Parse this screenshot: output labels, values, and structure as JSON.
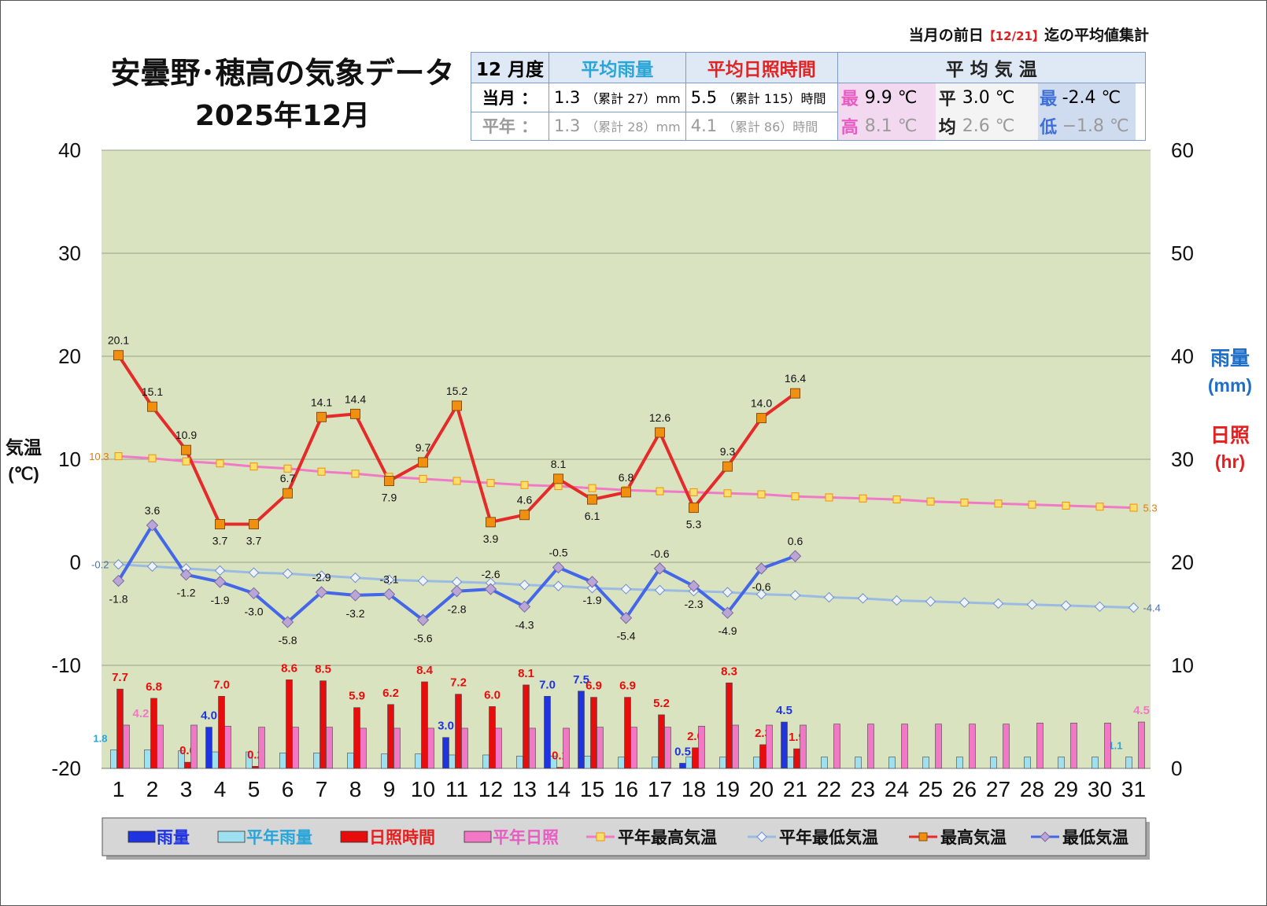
{
  "note": {
    "prefix": "当月の前日",
    "range": "【12/21】",
    "suffix": "迄の平均値集計"
  },
  "title": "安曇野･穂高の気象データ",
  "subtitle": "2025年12月",
  "summary": {
    "corner": "12 月度",
    "rain_header": "平均雨量",
    "sun_header": "平均日照時間",
    "temp_header": "平 均 気 温",
    "row_current": "当月 ：",
    "row_normal": "平年 ：",
    "rain_current": "1.3",
    "rain_current_cum": "（累計 27）mm",
    "rain_normal": "1.3",
    "rain_normal_cum": "（累計 28）mm",
    "sun_current": "5.5",
    "sun_current_cum": "（累計 115）時間",
    "sun_normal": "4.1",
    "sun_normal_cum": "（累計 86）時間",
    "max_label_1": "最",
    "max_label_2": "高",
    "avg_label_1": "平",
    "avg_label_2": "均",
    "min_label_1": "最",
    "min_label_2": "低",
    "max_current": "9.9 ℃",
    "max_normal": "8.1 ℃",
    "avg_current": "3.0 ℃",
    "avg_normal": "2.6 ℃",
    "min_current": "-2.4 ℃",
    "min_normal": "−1.8 ℃"
  },
  "colors": {
    "plot_bg": "#d9e3bf",
    "rain": "#1f33e0",
    "normal_rain": "#9fe0f0",
    "sunshine": "#e80d0d",
    "normal_sunshine": "#f277c4",
    "normal_max_line": "#f07ac6",
    "normal_min_line": "#9bbbe3",
    "max_line": "#e52a2a",
    "min_line": "#4466e8",
    "marker_orange": "#f0900e",
    "marker_lilac": "#b9a6d6"
  },
  "chart_data": {
    "type": "combo-bar-line",
    "ylabel_left": "気温",
    "ylabel_left_unit": "(℃)",
    "ylabel_right_rain": "雨量",
    "ylabel_right_rain_unit": "(mm)",
    "ylabel_right_sun": "日照",
    "ylabel_right_sun_unit": "(hr)",
    "ylim_left": [
      -20,
      40
    ],
    "ylim_right": [
      0,
      60
    ],
    "left_ticks": [
      "-20",
      "-10",
      "0",
      "10",
      "20",
      "30",
      "40"
    ],
    "right_ticks": [
      "0",
      "10",
      "20",
      "30",
      "40",
      "50",
      "60"
    ],
    "grid": true,
    "legend_position": "bottom",
    "categories": [
      "1",
      "2",
      "3",
      "4",
      "5",
      "6",
      "7",
      "8",
      "9",
      "10",
      "11",
      "12",
      "13",
      "14",
      "15",
      "16",
      "17",
      "18",
      "19",
      "20",
      "21",
      "22",
      "23",
      "24",
      "25",
      "26",
      "27",
      "28",
      "29",
      "30",
      "31"
    ],
    "series": [
      {
        "name": "雨量",
        "kind": "bar",
        "axis": "right",
        "values": [
          0,
          0,
          0,
          4.0,
          0,
          0,
          0,
          0,
          0,
          0,
          3.0,
          0,
          0,
          7.0,
          7.5,
          0,
          0,
          0.5,
          0,
          0,
          4.5,
          null,
          null,
          null,
          null,
          null,
          null,
          null,
          null,
          null,
          null
        ],
        "labels": [
          "",
          "",
          "",
          "4.0",
          "",
          "",
          "",
          "",
          "",
          "",
          "3.0",
          "",
          "",
          "7.0",
          "7.5",
          "",
          "",
          "0.5",
          "",
          "",
          "4.5",
          "",
          "",
          "",
          "",
          "",
          "",
          "",
          "",
          "",
          ""
        ]
      },
      {
        "name": "平年雨量",
        "kind": "bar",
        "axis": "right",
        "values": [
          1.8,
          1.8,
          1.7,
          1.6,
          1.6,
          1.5,
          1.5,
          1.5,
          1.4,
          1.4,
          1.3,
          1.3,
          1.2,
          1.2,
          1.2,
          1.1,
          1.1,
          1.1,
          1.1,
          1.1,
          1.1,
          1.1,
          1.1,
          1.1,
          1.1,
          1.1,
          1.1,
          1.1,
          1.1,
          1.1,
          1.1
        ],
        "labels": [
          "1.8",
          "",
          "",
          "",
          "",
          "",
          "",
          "",
          "",
          "",
          "",
          "",
          "",
          "",
          "",
          "",
          "",
          "",
          "",
          "",
          "",
          "",
          "",
          "",
          "",
          "",
          "",
          "",
          "",
          "",
          "1.1"
        ]
      },
      {
        "name": "日照時間",
        "kind": "bar",
        "axis": "right",
        "values": [
          7.7,
          6.8,
          0.6,
          7.0,
          0.2,
          8.6,
          8.5,
          5.9,
          6.2,
          8.4,
          7.2,
          6.0,
          8.1,
          0.1,
          6.9,
          6.9,
          5.2,
          2.0,
          8.3,
          2.3,
          1.9,
          null,
          null,
          null,
          null,
          null,
          null,
          null,
          null,
          null,
          null
        ],
        "labels": [
          "7.7",
          "6.8",
          "0.6",
          "7.0",
          "0.2",
          "8.6",
          "8.5",
          "5.9",
          "6.2",
          "8.4",
          "7.2",
          "6.0",
          "8.1",
          "0.1",
          "6.9",
          "6.9",
          "5.2",
          "2.0",
          "8.3",
          "2.3",
          "1.9",
          "",
          "",
          "",
          "",
          "",
          "",
          "",
          "",
          "",
          ""
        ]
      },
      {
        "name": "平年日照",
        "kind": "bar",
        "axis": "right",
        "values": [
          4.2,
          4.2,
          4.2,
          4.1,
          4.0,
          4.0,
          4.0,
          3.9,
          3.9,
          3.9,
          3.9,
          3.9,
          3.9,
          3.9,
          4.0,
          4.0,
          4.0,
          4.1,
          4.2,
          4.2,
          4.2,
          4.3,
          4.3,
          4.3,
          4.3,
          4.3,
          4.3,
          4.4,
          4.4,
          4.4,
          4.5
        ],
        "labels": [
          "4.2",
          "",
          "",
          "",
          "",
          "",
          "",
          "",
          "",
          "",
          "",
          "",
          "",
          "",
          "",
          "",
          "",
          "",
          "",
          "",
          "",
          "",
          "",
          "",
          "",
          "",
          "",
          "",
          "",
          "",
          "4.5"
        ]
      },
      {
        "name": "平年最高気温",
        "kind": "line",
        "axis": "left",
        "values": [
          10.3,
          10.1,
          9.8,
          9.6,
          9.3,
          9.1,
          8.8,
          8.6,
          8.3,
          8.1,
          7.9,
          7.7,
          7.5,
          7.4,
          7.2,
          7.0,
          6.9,
          6.8,
          6.7,
          6.6,
          6.4,
          6.3,
          6.2,
          6.1,
          5.9,
          5.8,
          5.7,
          5.6,
          5.5,
          5.4,
          5.3
        ],
        "labels": [
          "10.3",
          "",
          "",
          "",
          "",
          "",
          "",
          "",
          "",
          "",
          "",
          "",
          "",
          "",
          "",
          "",
          "",
          "",
          "",
          "",
          "",
          "",
          "",
          "",
          "",
          "",
          "",
          "",
          "",
          "",
          "5.3"
        ]
      },
      {
        "name": "平年最低気温",
        "kind": "line",
        "axis": "left",
        "values": [
          -0.2,
          -0.4,
          -0.6,
          -0.8,
          -1.0,
          -1.1,
          -1.3,
          -1.5,
          -1.7,
          -1.8,
          -1.9,
          -2.0,
          -2.2,
          -2.3,
          -2.5,
          -2.6,
          -2.7,
          -2.8,
          -2.9,
          -3.1,
          -3.2,
          -3.4,
          -3.5,
          -3.7,
          -3.8,
          -3.9,
          -4.0,
          -4.1,
          -4.2,
          -4.3,
          -4.4
        ],
        "labels": [
          "-0.2",
          "",
          "",
          "",
          "",
          "",
          "",
          "",
          "",
          "",
          "",
          "",
          "",
          "",
          "",
          "",
          "",
          "",
          "",
          "",
          "",
          "",
          "",
          "",
          "",
          "",
          "",
          "",
          "",
          "",
          "-4.4"
        ]
      },
      {
        "name": "最高気温",
        "kind": "line",
        "axis": "left",
        "values": [
          20.1,
          15.1,
          10.9,
          3.7,
          3.7,
          6.7,
          14.1,
          14.4,
          7.9,
          9.7,
          15.2,
          3.9,
          4.6,
          8.1,
          6.1,
          6.8,
          12.6,
          5.3,
          9.3,
          14.0,
          16.4,
          null,
          null,
          null,
          null,
          null,
          null,
          null,
          null,
          null,
          null
        ],
        "labels": [
          "20.1",
          "15.1",
          "10.9",
          "3.7",
          "3.7",
          "6.7",
          "14.1",
          "14.4",
          "7.9",
          "9.7",
          "15.2",
          "3.9",
          "4.6",
          "8.1",
          "6.1",
          "6.8",
          "12.6",
          "5.3",
          "9.3",
          "14.0",
          "16.4",
          "",
          "",
          "",
          "",
          "",
          "",
          "",
          "",
          "",
          ""
        ]
      },
      {
        "name": "最低気温",
        "kind": "line",
        "axis": "left",
        "values": [
          -1.8,
          3.6,
          -1.2,
          -1.9,
          -3.0,
          -5.8,
          -2.9,
          -3.2,
          -3.1,
          -5.6,
          -2.8,
          -2.6,
          -4.3,
          -0.5,
          -1.9,
          -5.4,
          -0.6,
          -2.3,
          -4.9,
          -0.6,
          0.6,
          null,
          null,
          null,
          null,
          null,
          null,
          null,
          null,
          null,
          null
        ],
        "labels": [
          "-1.8",
          "3.6",
          "-1.2",
          "-1.9",
          "-3.0",
          "-5.8",
          "-2.9",
          "-3.2",
          "-3.1",
          "-5.6",
          "-2.8",
          "-2.6",
          "-4.3",
          "-0.5",
          "-1.9",
          "-5.4",
          "-0.6",
          "-2.3",
          "-4.9",
          "-0.6",
          "0.6",
          "",
          "",
          "",
          "",
          "",
          "",
          "",
          "",
          "",
          ""
        ]
      }
    ]
  }
}
